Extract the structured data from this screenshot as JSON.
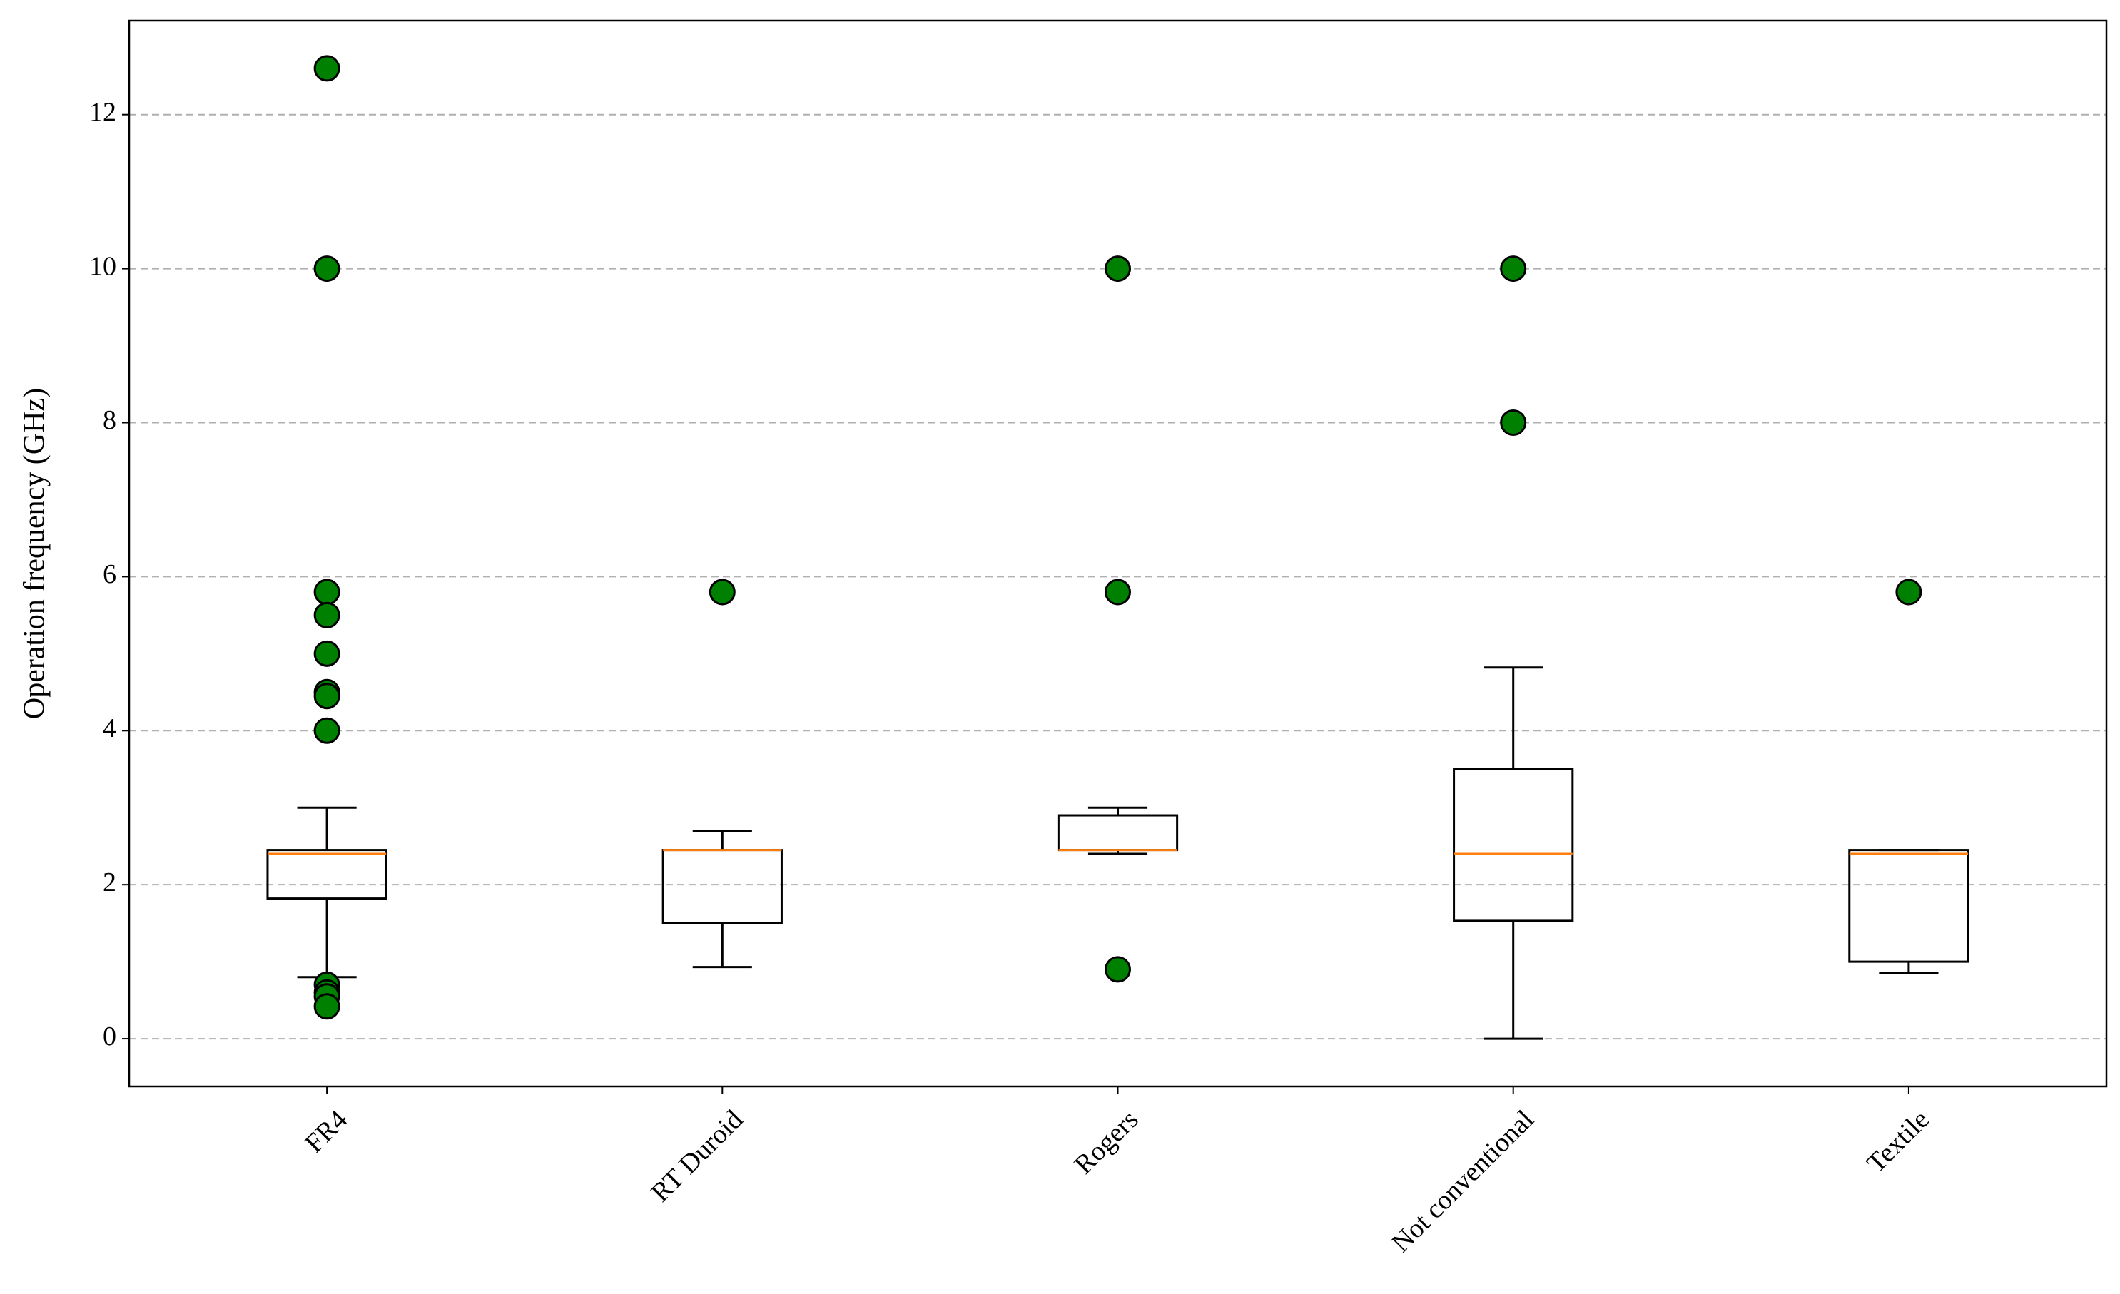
{
  "chart_data": {
    "type": "box",
    "y_label": "Operation frequency (GHz)",
    "categories": [
      "FR4",
      "RT Duroid",
      "Rogers",
      "Not conventional",
      "Textile"
    ],
    "boxes": [
      {
        "whislo": 0.8,
        "q1": 1.82,
        "med": 2.4,
        "q3": 2.45,
        "whishi": 3.0,
        "fliers": [
          12.6,
          10,
          5.8,
          5.5,
          5.0,
          4.5,
          4.45,
          4.0,
          0.7,
          0.6,
          0.55,
          0.42
        ]
      },
      {
        "whislo": 0.93,
        "q1": 1.5,
        "med": 2.45,
        "q3": 2.45,
        "whishi": 2.7,
        "fliers": [
          5.8
        ]
      },
      {
        "whislo": 2.4,
        "q1": 2.45,
        "med": 2.45,
        "q3": 2.9,
        "whishi": 3.0,
        "fliers": [
          10,
          5.8,
          0.9
        ]
      },
      {
        "whislo": 0,
        "q1": 1.53,
        "med": 2.4,
        "q3": 3.5,
        "whishi": 4.82,
        "fliers": [
          10,
          8
        ]
      },
      {
        "whislo": 0.85,
        "q1": 1.0,
        "med": 2.4,
        "q3": 2.45,
        "whishi": 2.45,
        "fliers": [
          5.8
        ]
      }
    ],
    "box_color": "#000000",
    "median_color": "#ff7f0e",
    "flier_color": "#008000",
    "ylim": [
      -0.62,
      13.22
    ],
    "yticks": [
      0,
      2,
      4,
      6,
      8,
      10,
      12
    ],
    "grid": true
  }
}
